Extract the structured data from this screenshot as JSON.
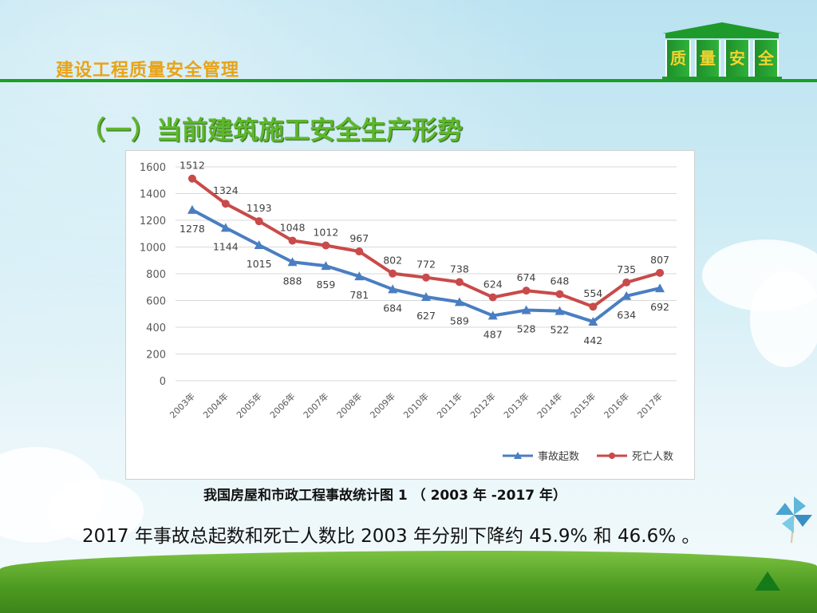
{
  "header": {
    "title": "建设工程质量安全管理",
    "logo_chars": [
      "质",
      "量",
      "安",
      "全"
    ]
  },
  "section_title": "（一）当前建筑施工安全生产形势",
  "chart_data": {
    "type": "line",
    "categories": [
      "2003年",
      "2004年",
      "2005年",
      "2006年",
      "2007年",
      "2008年",
      "2009年",
      "2010年",
      "2011年",
      "2012年",
      "2013年",
      "2014年",
      "2015年",
      "2016年",
      "2017年"
    ],
    "series": [
      {
        "name": "事故起数",
        "color": "#4a7ec2",
        "marker": "triangle",
        "values": [
          1278,
          1144,
          1015,
          888,
          859,
          781,
          684,
          627,
          589,
          487,
          528,
          522,
          442,
          634,
          692
        ]
      },
      {
        "name": "死亡人数",
        "color": "#c94a4a",
        "marker": "circle",
        "values": [
          1512,
          1324,
          1193,
          1048,
          1012,
          967,
          802,
          772,
          738,
          624,
          674,
          648,
          554,
          735,
          807
        ]
      }
    ],
    "ylim": [
      0,
      1600
    ],
    "yticks": [
      0,
      200,
      400,
      600,
      800,
      1000,
      1200,
      1400,
      1600
    ],
    "grid": true,
    "legend_position": "bottom-right"
  },
  "caption": "我国房屋和市政工程事故统计图 1 （ 2003 年 -2017 年）",
  "summary": "2017 年事故总起数和死亡人数比 2003 年分别下降约 45.9% 和 46.6% 。"
}
